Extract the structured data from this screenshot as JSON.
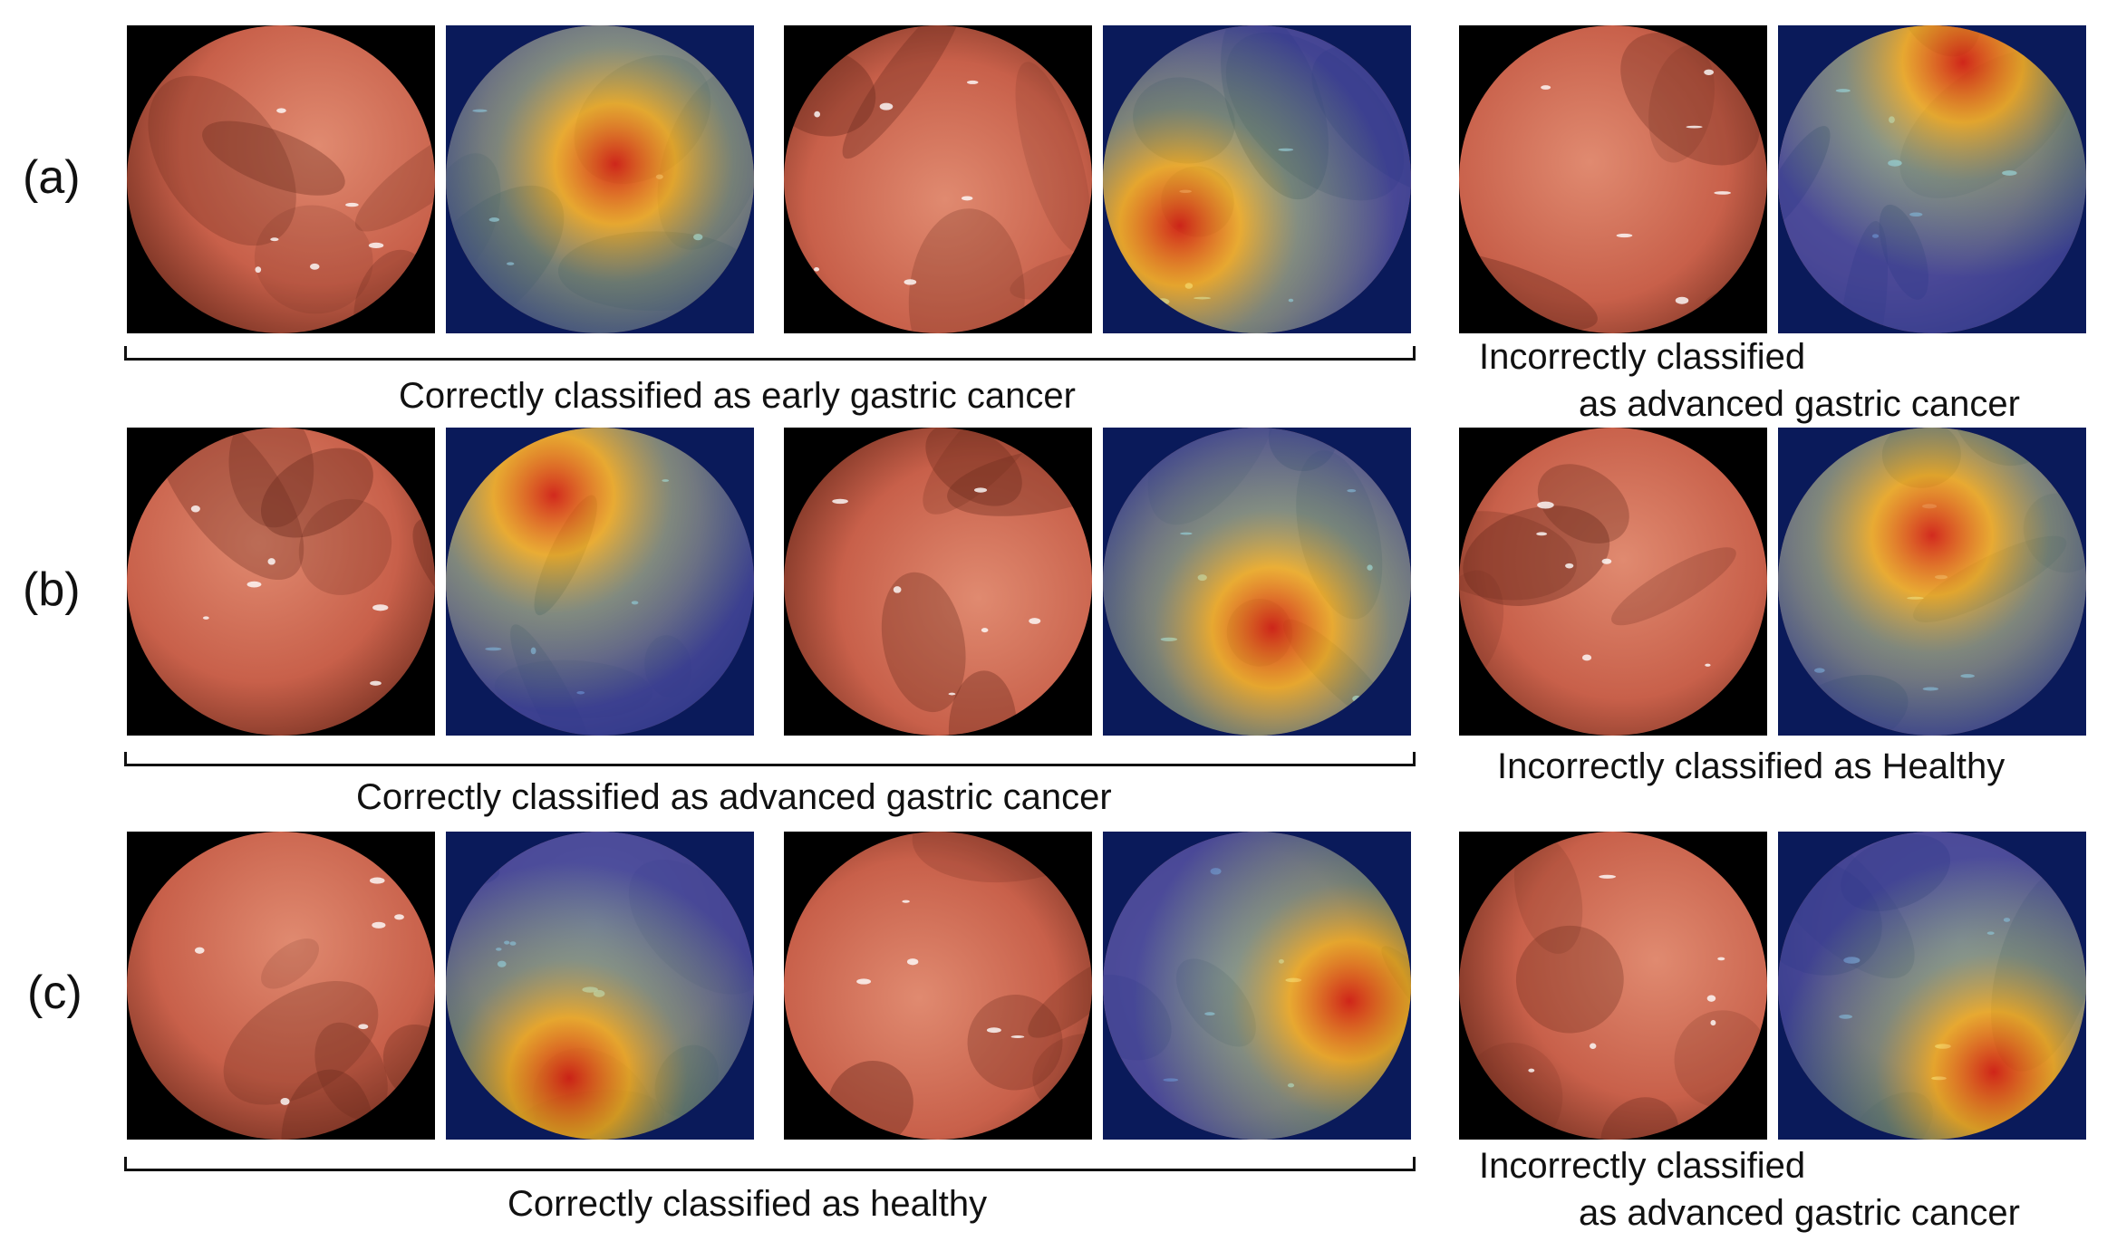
{
  "rows": [
    {
      "label": "(a)",
      "correct_caption": "Correctly classified as early gastric cancer",
      "incorrect_caption_line1": "Incorrectly classified",
      "incorrect_caption_line2": "as advanced gastric cancer"
    },
    {
      "label": "(b)",
      "correct_caption": "Correctly classified as advanced gastric cancer",
      "incorrect_caption_line1": "Incorrectly classified as Healthy",
      "incorrect_caption_line2": ""
    },
    {
      "label": "(c)",
      "correct_caption": "Correctly classified as healthy",
      "incorrect_caption_line1": "Incorrectly classified",
      "incorrect_caption_line2": "as advanced gastric cancer"
    }
  ],
  "colors": {
    "tissue_light": "#e08a70",
    "tissue_mid": "#c8604a",
    "tissue_dark": "#6a2a1c",
    "heat_hot": "#d01a10",
    "heat_warm": "#f0c020",
    "heat_cool": "#2040b0",
    "background": "#000000"
  }
}
